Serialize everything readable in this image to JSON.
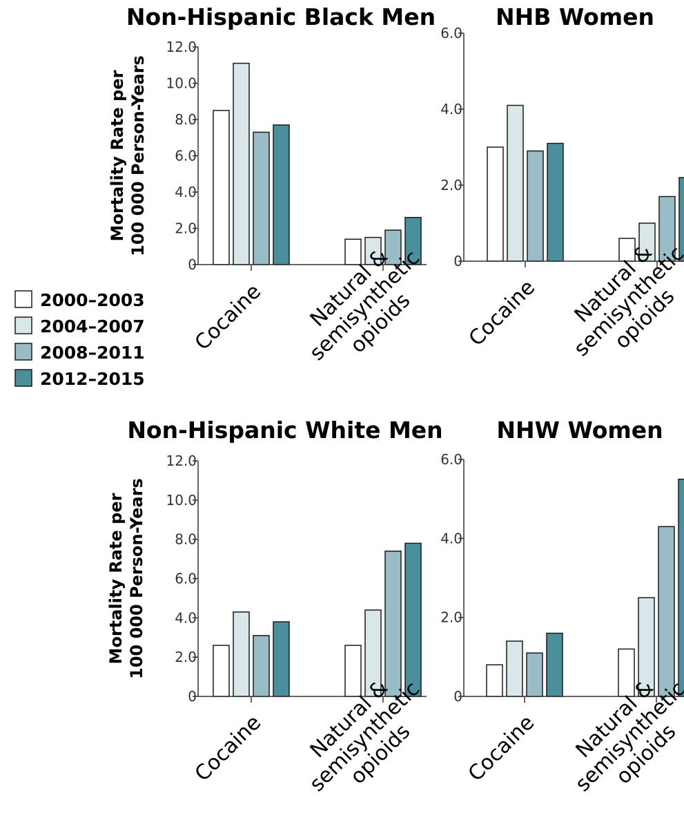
{
  "legend": [
    {
      "label": "2000–2003",
      "color": "#ffffff"
    },
    {
      "label": "2004–2007",
      "color": "#d9e6ea"
    },
    {
      "label": "2008–2011",
      "color": "#99bcc6"
    },
    {
      "label": "2012–2015",
      "color": "#4b8e9c"
    }
  ],
  "chart_data": [
    {
      "type": "bar",
      "title": "Non-Hispanic Black Men",
      "ylabel_lines": [
        "Mortality Rate per",
        "100 000 Person-Years"
      ],
      "categories": [
        [
          "Cocaine"
        ],
        [
          "Natural &",
          "semisynthetic",
          "opioids"
        ]
      ],
      "ylim": [
        0,
        12
      ],
      "yticks": [
        "0",
        "2.0",
        "4.0",
        "6.0",
        "8.0",
        "10.0",
        "12.0"
      ],
      "series": [
        {
          "name": "2000–2003",
          "values": [
            8.5,
            1.4
          ]
        },
        {
          "name": "2004–2007",
          "values": [
            11.1,
            1.5
          ]
        },
        {
          "name": "2008–2011",
          "values": [
            7.3,
            1.9
          ]
        },
        {
          "name": "2012–2015",
          "values": [
            7.7,
            2.6
          ]
        }
      ]
    },
    {
      "type": "bar",
      "title": "NHB Women",
      "ylabel_lines": [],
      "categories": [
        [
          "Cocaine"
        ],
        [
          "Natural &",
          "semisynthetic",
          "opioids"
        ]
      ],
      "ylim": [
        0,
        6
      ],
      "yticks": [
        "0",
        "2.0",
        "4.0",
        "6.0"
      ],
      "series": [
        {
          "name": "2000–2003",
          "values": [
            3.0,
            0.6
          ]
        },
        {
          "name": "2004–2007",
          "values": [
            4.1,
            1.0
          ]
        },
        {
          "name": "2008–2011",
          "values": [
            2.9,
            1.7
          ]
        },
        {
          "name": "2012–2015",
          "values": [
            3.1,
            2.2
          ]
        }
      ]
    },
    {
      "type": "bar",
      "title": "Non-Hispanic White Men",
      "ylabel_lines": [
        "Mortality Rate per",
        "100 000 Person-Years"
      ],
      "categories": [
        [
          "Cocaine"
        ],
        [
          "Natural &",
          "semisynthetic",
          "opioids"
        ]
      ],
      "ylim": [
        0,
        12
      ],
      "yticks": [
        "0",
        "2.0",
        "4.0",
        "6.0",
        "8.0",
        "10.0",
        "12.0"
      ],
      "series": [
        {
          "name": "2000–2003",
          "values": [
            2.6,
            2.6
          ]
        },
        {
          "name": "2004–2007",
          "values": [
            4.3,
            4.4
          ]
        },
        {
          "name": "2008–2011",
          "values": [
            3.1,
            7.4
          ]
        },
        {
          "name": "2012–2015",
          "values": [
            3.8,
            7.8
          ]
        }
      ]
    },
    {
      "type": "bar",
      "title": "NHW Women",
      "ylabel_lines": [],
      "categories": [
        [
          "Cocaine"
        ],
        [
          "Natural &",
          "semisynthetic",
          "opioids"
        ]
      ],
      "ylim": [
        0,
        6
      ],
      "yticks": [
        "0",
        "2.0",
        "4.0",
        "6.0"
      ],
      "series": [
        {
          "name": "2000–2003",
          "values": [
            0.8,
            1.2
          ]
        },
        {
          "name": "2004–2007",
          "values": [
            1.4,
            2.5
          ]
        },
        {
          "name": "2008–2011",
          "values": [
            1.1,
            4.3
          ]
        },
        {
          "name": "2012–2015",
          "values": [
            1.6,
            5.5
          ]
        }
      ]
    }
  ]
}
